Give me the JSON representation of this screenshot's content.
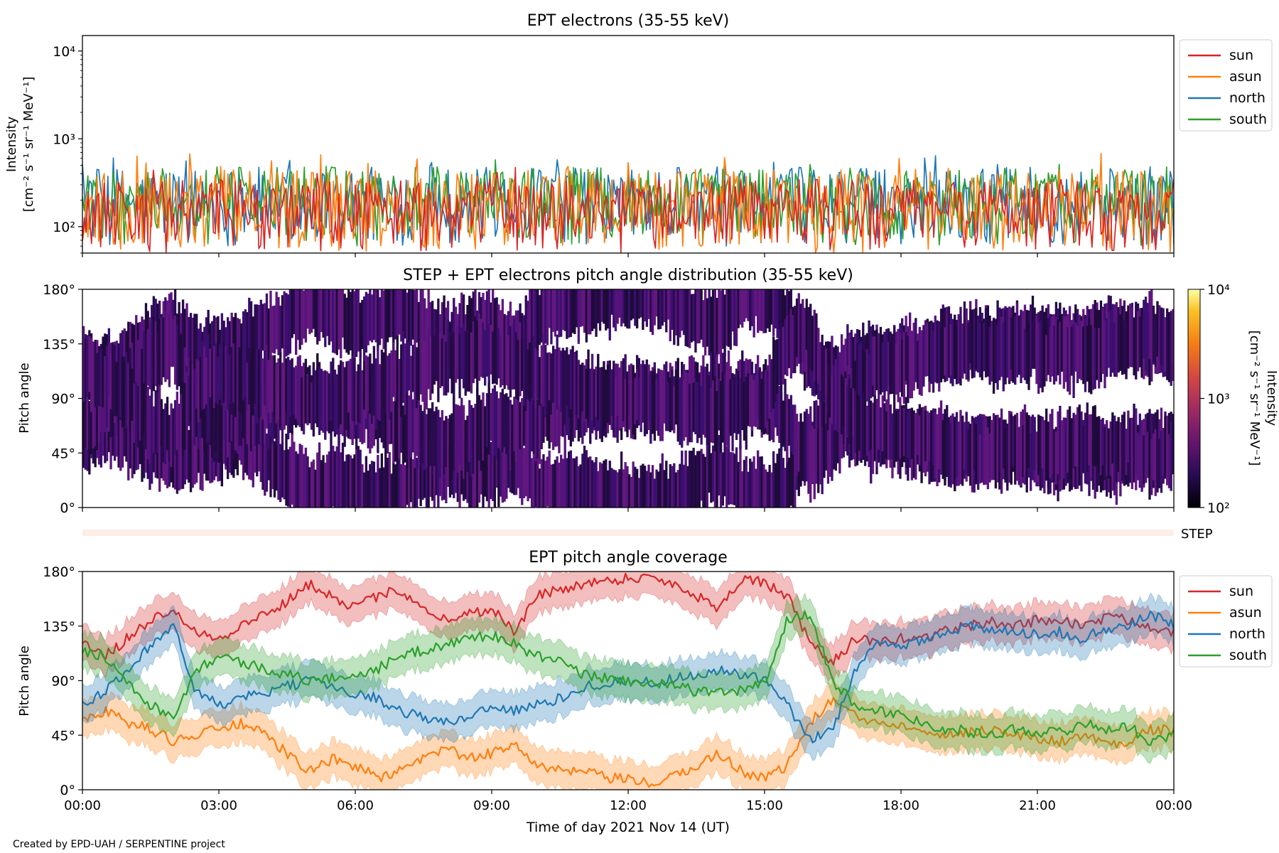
{
  "figure": {
    "credit": "Created by EPD-UAH / SERPENTINE project"
  },
  "chart_data": [
    {
      "type": "line",
      "title": "EPT electrons (35-55 keV)",
      "ylabel_line1": "Intensity",
      "ylabel_line2": "[cm⁻² s⁻¹ sr⁻¹ MeV⁻¹]",
      "yscale": "log",
      "ylim": [
        50,
        15000
      ],
      "yticks": [
        {
          "v": 100,
          "label": "10²"
        },
        {
          "v": 1000,
          "label": "10³"
        },
        {
          "v": 10000,
          "label": "10⁴"
        }
      ],
      "xlim_hours": [
        0,
        24
      ],
      "legend_position": "outside-right-top",
      "series": [
        {
          "name": "sun",
          "color": "#d62728",
          "typical_range": [
            50,
            350
          ],
          "peak": 550
        },
        {
          "name": "asun",
          "color": "#ff7f0e",
          "typical_range": [
            50,
            450
          ],
          "peak": 700
        },
        {
          "name": "north",
          "color": "#1f77b4",
          "typical_range": [
            60,
            480
          ],
          "peak": 700
        },
        {
          "name": "south",
          "color": "#2ca02c",
          "typical_range": [
            60,
            480
          ],
          "peak": 600
        }
      ],
      "draw_order": [
        "north",
        "south",
        "asun",
        "sun"
      ],
      "samples_per_series": 600
    },
    {
      "type": "heatmap",
      "title": "STEP + EPT electrons pitch angle distribution (35-55 keV)",
      "ylabel": "Pitch angle",
      "ylim_deg": [
        0,
        180
      ],
      "yticks": [
        {
          "v": 0,
          "label": "0°"
        },
        {
          "v": 45,
          "label": "45°"
        },
        {
          "v": 90,
          "label": "90°"
        },
        {
          "v": 135,
          "label": "135°"
        },
        {
          "v": 180,
          "label": "180°"
        }
      ],
      "colorbar": {
        "label_line1": "Intensity",
        "label_line2": "[cm⁻² s⁻¹ sr⁻¹ MeV⁻¹]",
        "scale": "log",
        "range": [
          100,
          10000
        ],
        "ticks": [
          {
            "v": 100,
            "label": "10²"
          },
          {
            "v": 1000,
            "label": "10³"
          },
          {
            "v": 10000,
            "label": "10⁴"
          }
        ],
        "colormap": "inferno"
      },
      "band_colors": [
        "#2a0b4f",
        "#3b0f6f",
        "#55147b",
        "#1e0b3a",
        "#62187f"
      ],
      "step_strip": {
        "label": "STEP",
        "color": "#fdeee7"
      }
    },
    {
      "type": "line",
      "title": "EPT pitch angle coverage",
      "ylabel": "Pitch angle",
      "xlabel": "Time of day 2021 Nov 14 (UT)",
      "ylim_deg": [
        0,
        180
      ],
      "yticks": [
        {
          "v": 0,
          "label": "0°"
        },
        {
          "v": 45,
          "label": "45°"
        },
        {
          "v": 90,
          "label": "90°"
        },
        {
          "v": 135,
          "label": "135°"
        },
        {
          "v": 180,
          "label": "180°"
        }
      ],
      "xticks": [
        {
          "h": 0,
          "label": "00:00"
        },
        {
          "h": 3,
          "label": "03:00"
        },
        {
          "h": 6,
          "label": "06:00"
        },
        {
          "h": 9,
          "label": "09:00"
        },
        {
          "h": 12,
          "label": "12:00"
        },
        {
          "h": 15,
          "label": "15:00"
        },
        {
          "h": 18,
          "label": "18:00"
        },
        {
          "h": 21,
          "label": "21:00"
        },
        {
          "h": 24,
          "label": "00:00"
        }
      ],
      "xlim_hours": [
        0,
        24
      ],
      "band_half_width_deg": 15,
      "legend_position": "outside-right-top",
      "series": [
        {
          "name": "sun",
          "color": "#d62728",
          "x": [
            0,
            0.5,
            1,
            1.5,
            2,
            2.5,
            3,
            3.5,
            4,
            4.5,
            5,
            5.5,
            6,
            6.5,
            7,
            7.5,
            8,
            8.5,
            9,
            9.5,
            10,
            10.5,
            11,
            11.5,
            12,
            12.5,
            13,
            13.5,
            14,
            14.5,
            15,
            15.5,
            16,
            16.5,
            17,
            17.5,
            18,
            18.5,
            19,
            19.5,
            20,
            20.5,
            21,
            21.5,
            22,
            22.5,
            23,
            23.5,
            24
          ],
          "y": [
            120,
            110,
            125,
            140,
            150,
            130,
            125,
            135,
            145,
            155,
            170,
            160,
            150,
            160,
            165,
            150,
            140,
            145,
            150,
            130,
            160,
            165,
            170,
            172,
            175,
            175,
            170,
            160,
            150,
            175,
            170,
            160,
            120,
            105,
            125,
            120,
            125,
            125,
            132,
            135,
            138,
            135,
            140,
            140,
            135,
            142,
            140,
            135,
            130
          ]
        },
        {
          "name": "asun",
          "color": "#ff7f0e",
          "x": [
            0,
            0.5,
            1,
            1.5,
            2,
            2.5,
            3,
            3.5,
            4,
            4.5,
            5,
            5.5,
            6,
            6.5,
            7,
            7.5,
            8,
            8.5,
            9,
            9.5,
            10,
            10.5,
            11,
            11.5,
            12,
            12.5,
            13,
            13.5,
            14,
            14.5,
            15,
            15.5,
            16,
            16.5,
            17,
            17.5,
            18,
            18.5,
            19,
            19.5,
            20,
            20.5,
            21,
            21.5,
            22,
            22.5,
            23,
            23.5,
            24
          ],
          "y": [
            60,
            65,
            55,
            50,
            40,
            45,
            50,
            55,
            45,
            30,
            15,
            25,
            20,
            10,
            15,
            25,
            35,
            25,
            30,
            40,
            20,
            15,
            15,
            10,
            8,
            5,
            10,
            20,
            30,
            15,
            10,
            20,
            55,
            75,
            60,
            55,
            55,
            50,
            45,
            48,
            50,
            45,
            42,
            40,
            45,
            38,
            40,
            50,
            48
          ]
        },
        {
          "name": "north",
          "color": "#1f77b4",
          "x": [
            0,
            0.5,
            1,
            1.5,
            2,
            2.5,
            3,
            3.5,
            4,
            4.5,
            5,
            5.5,
            6,
            6.5,
            7,
            7.5,
            8,
            8.5,
            9,
            9.5,
            10,
            10.5,
            11,
            11.5,
            12,
            12.5,
            13,
            13.5,
            14,
            14.5,
            15,
            15.5,
            16,
            16.5,
            17,
            17.5,
            18,
            18.5,
            19,
            19.5,
            20,
            20.5,
            21,
            21.5,
            22,
            22.5,
            23,
            23.5,
            24
          ],
          "y": [
            70,
            80,
            100,
            120,
            135,
            80,
            70,
            75,
            80,
            85,
            90,
            85,
            80,
            75,
            65,
            60,
            55,
            60,
            70,
            65,
            70,
            75,
            85,
            88,
            90,
            88,
            92,
            95,
            98,
            95,
            90,
            70,
            40,
            50,
            100,
            120,
            118,
            125,
            130,
            135,
            130,
            132,
            128,
            130,
            125,
            132,
            135,
            145,
            135
          ]
        },
        {
          "name": "south",
          "color": "#2ca02c",
          "x": [
            0,
            0.5,
            1,
            1.5,
            2,
            2.5,
            3,
            3.5,
            4,
            4.5,
            5,
            5.5,
            6,
            6.5,
            7,
            7.5,
            8,
            8.5,
            9,
            9.5,
            10,
            10.5,
            11,
            11.5,
            12,
            12.5,
            13,
            13.5,
            14,
            14.5,
            15,
            15.5,
            16,
            16.5,
            17,
            17.5,
            18,
            18.5,
            19,
            19.5,
            20,
            20.5,
            21,
            21.5,
            22,
            22.5,
            23,
            23.5,
            24
          ],
          "y": [
            115,
            110,
            90,
            70,
            60,
            100,
            110,
            105,
            100,
            95,
            90,
            92,
            95,
            100,
            110,
            115,
            120,
            125,
            128,
            120,
            110,
            105,
            95,
            92,
            90,
            88,
            85,
            82,
            80,
            82,
            88,
            140,
            145,
            90,
            70,
            65,
            62,
            55,
            50,
            48,
            45,
            50,
            48,
            47,
            55,
            50,
            52,
            40,
            45
          ]
        }
      ]
    }
  ]
}
